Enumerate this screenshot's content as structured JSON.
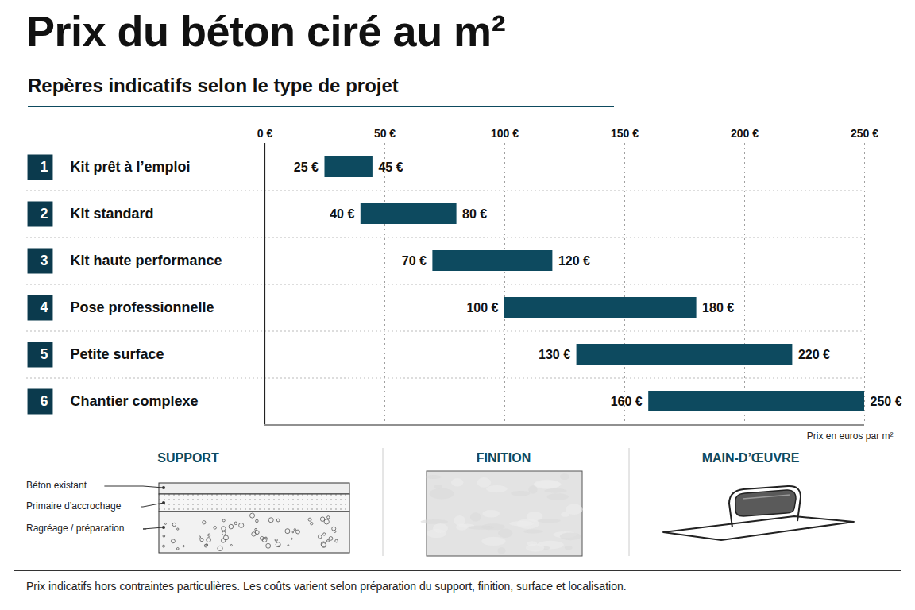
{
  "chart_data": {
    "type": "bar",
    "orientation": "horizontal",
    "title": "Prix du béton ciré au m²",
    "subtitle": "Repères indicatifs selon le type de projet",
    "category_numbers": [
      "1",
      "2",
      "3",
      "4",
      "5",
      "6"
    ],
    "categories": [
      "Kit prêt à l’emploi",
      "Kit standard",
      "Kit haute performance",
      "Pose professionnelle",
      "Petite surface",
      "Chantier complexe"
    ],
    "values": [
      [
        25,
        45
      ],
      [
        40,
        80
      ],
      [
        70,
        120
      ],
      [
        100,
        180
      ],
      [
        130,
        220
      ],
      [
        160,
        250
      ]
    ],
    "value_labels": [
      [
        "25 €",
        "45 €"
      ],
      [
        "40 €",
        "80 €"
      ],
      [
        "70 €",
        "120 €"
      ],
      [
        "100 €",
        "180 €"
      ],
      [
        "130 €",
        "220 €"
      ],
      [
        "160 €",
        "250 €"
      ]
    ],
    "data_labels": true,
    "color": "#0d4a5f",
    "xlim": [
      0,
      250
    ],
    "xticks": [
      {
        "value": 0,
        "label": "0 €"
      },
      {
        "value": 50,
        "label": "50 €"
      },
      {
        "value": 100,
        "label": "100 €"
      },
      {
        "value": 150,
        "label": "150 €"
      },
      {
        "value": 200,
        "label": "200 €"
      },
      {
        "value": 250,
        "label": "250 €"
      }
    ],
    "xlabel": "Prix en euros par m²",
    "grid": true
  },
  "panels": [
    {
      "title": "SUPPORT",
      "labels": [
        "Béton existant",
        "Primaire d’accrochage",
        "Ragréage / préparation"
      ]
    },
    {
      "title": "FINITION"
    },
    {
      "title": "MAIN-D’ŒUVRE"
    }
  ],
  "footnote": "Prix indicatifs hors contraintes particulières. Les coûts varient selon préparation du support, finition, surface et localisation."
}
